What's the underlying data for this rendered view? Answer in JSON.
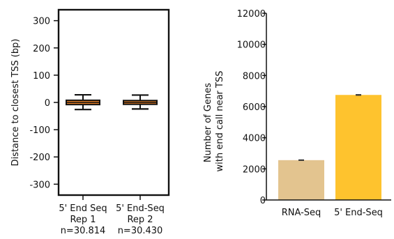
{
  "chart_data": [
    {
      "type": "box",
      "ylabel": "Distance to closest TSS (bp)",
      "ylim": [
        -340,
        340
      ],
      "yticks": [
        300,
        200,
        100,
        0,
        -100,
        -200,
        -300
      ],
      "grid": false,
      "legend": "none",
      "categories": [
        {
          "label_lines": [
            "5' End Seq",
            "Rep 1",
            "n=30.814"
          ],
          "whisker_low": -26,
          "q1": -8,
          "median": 0,
          "q3": 8,
          "whisker_high": 28
        },
        {
          "label_lines": [
            "5' End-Seq",
            "Rep 2",
            "n=30.430"
          ],
          "whisker_low": -24,
          "q1": -7,
          "median": 0,
          "q3": 7,
          "whisker_high": 27
        }
      ],
      "colors": {
        "box_fill": "#e07a22",
        "line": "#111111"
      }
    },
    {
      "type": "bar",
      "ylabel_lines": [
        "Number of Genes",
        "with end call near TSS"
      ],
      "ylim": [
        0,
        12000
      ],
      "yticks": [
        12000,
        10000,
        8000,
        6000,
        4000,
        2000,
        0
      ],
      "grid": false,
      "legend": "none",
      "categories": [
        "RNA-Seq",
        "5' End-Seq"
      ],
      "values": [
        2560,
        6750
      ],
      "errors": [
        20,
        25
      ],
      "colors": [
        "#e3c48f",
        "#fec32e"
      ]
    }
  ]
}
